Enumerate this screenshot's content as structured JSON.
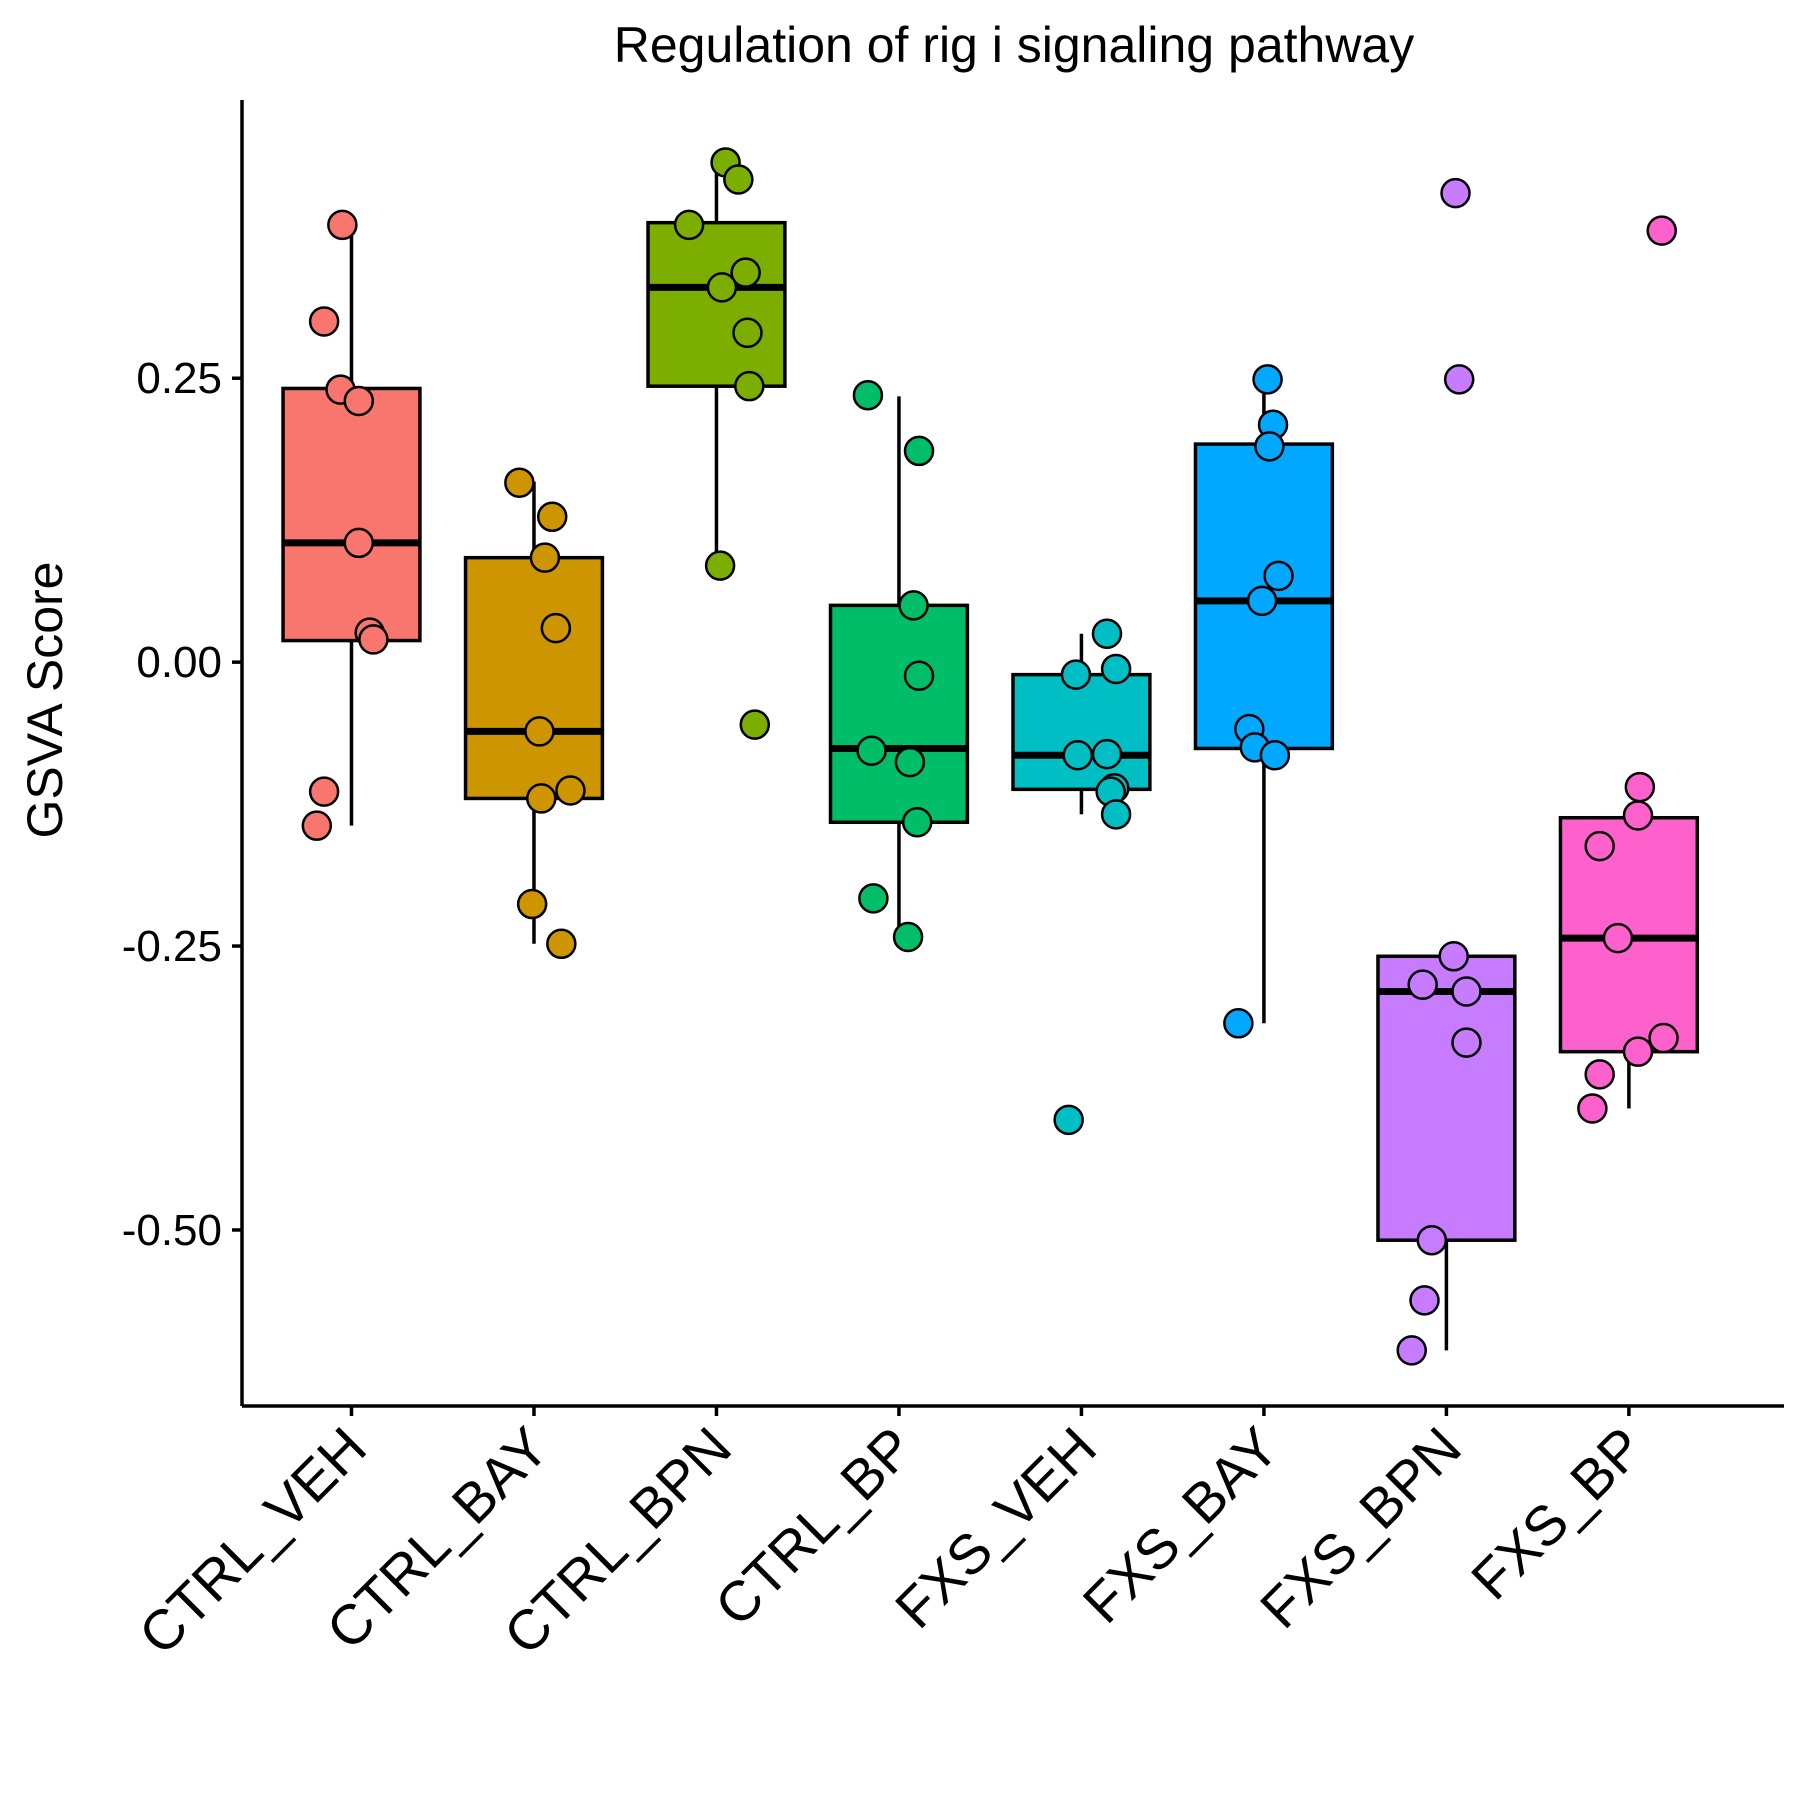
{
  "chart_data": {
    "type": "box",
    "title": "Regulation of rig i signaling pathway",
    "ylabel": "GSVA Score",
    "xlabel": "",
    "ylim": [
      -0.655,
      0.495
    ],
    "yticks": [
      0.25,
      0.0,
      -0.25,
      -0.5
    ],
    "ytick_labels": [
      "0.25",
      "0.00",
      "-0.25",
      "-0.50"
    ],
    "grid": false,
    "legend": "none",
    "categories": [
      "CTRL_VEH",
      "CTRL_BAY",
      "CTRL_BPN",
      "CTRL_BP",
      "FXS_VEH",
      "FXS_BAY",
      "FXS_BPN",
      "FXS_BP"
    ],
    "colors": [
      "#F8766D",
      "#CD9600",
      "#7CAE00",
      "#00BE67",
      "#00BFC4",
      "#00A9FF",
      "#C77CFF",
      "#FF61CC"
    ],
    "boxes": [
      {
        "q1": 0.019,
        "median": 0.105,
        "q3": 0.241,
        "whisker_low": -0.144,
        "whisker_high": 0.383
      },
      {
        "q1": -0.12,
        "median": -0.061,
        "q3": 0.092,
        "whisker_low": -0.248,
        "whisker_high": 0.159
      },
      {
        "q1": 0.243,
        "median": 0.33,
        "q3": 0.387,
        "whisker_low": 0.085,
        "whisker_high": 0.44
      },
      {
        "q1": -0.141,
        "median": -0.076,
        "q3": 0.05,
        "whisker_low": -0.242,
        "whisker_high": 0.234
      },
      {
        "q1": -0.112,
        "median": -0.082,
        "q3": -0.011,
        "whisker_low": -0.134,
        "whisker_high": 0.025
      },
      {
        "q1": -0.076,
        "median": 0.054,
        "q3": 0.192,
        "whisker_low": -0.318,
        "whisker_high": 0.249
      },
      {
        "q1": -0.509,
        "median": -0.29,
        "q3": -0.259,
        "whisker_low": -0.606,
        "whisker_high": -0.259
      },
      {
        "q1": -0.343,
        "median": -0.243,
        "q3": -0.137,
        "whisker_low": -0.393,
        "whisker_high": -0.137
      }
    ],
    "points": [
      [
        [
          -0.05,
          0.385
        ],
        [
          -0.15,
          0.3
        ],
        [
          -0.06,
          0.24
        ],
        [
          0.04,
          0.23
        ],
        [
          0.04,
          0.105
        ],
        [
          0.1,
          0.026
        ],
        [
          0.12,
          0.02
        ],
        [
          -0.15,
          -0.114
        ],
        [
          -0.19,
          -0.144
        ]
      ],
      [
        [
          -0.08,
          0.158
        ],
        [
          0.1,
          0.128
        ],
        [
          0.06,
          0.092
        ],
        [
          0.12,
          0.03
        ],
        [
          0.03,
          -0.061
        ],
        [
          0.04,
          -0.12
        ],
        [
          0.2,
          -0.113
        ],
        [
          -0.01,
          -0.213
        ],
        [
          0.15,
          -0.248
        ]
      ],
      [
        [
          0.05,
          0.44
        ],
        [
          0.12,
          0.425
        ],
        [
          -0.15,
          0.385
        ],
        [
          0.16,
          0.343
        ],
        [
          0.03,
          0.33
        ],
        [
          0.17,
          0.29
        ],
        [
          0.18,
          0.243
        ],
        [
          0.02,
          0.085
        ],
        [
          0.21,
          -0.055
        ]
      ],
      [
        [
          -0.17,
          0.235
        ],
        [
          0.11,
          0.186
        ],
        [
          0.08,
          0.05
        ],
        [
          0.11,
          -0.012
        ],
        [
          -0.15,
          -0.078
        ],
        [
          0.06,
          -0.088
        ],
        [
          0.1,
          -0.141
        ],
        [
          -0.14,
          -0.208
        ],
        [
          0.05,
          -0.242
        ]
      ],
      [
        [
          0.14,
          0.025
        ],
        [
          -0.03,
          -0.011
        ],
        [
          0.19,
          -0.006
        ],
        [
          0.14,
          -0.081
        ],
        [
          -0.02,
          -0.082
        ],
        [
          0.18,
          -0.111
        ],
        [
          0.16,
          -0.114
        ],
        [
          0.19,
          -0.134
        ],
        [
          -0.07,
          -0.403
        ]
      ],
      [
        [
          0.02,
          0.249
        ],
        [
          0.05,
          0.209
        ],
        [
          0.03,
          0.19
        ],
        [
          0.08,
          0.076
        ],
        [
          -0.01,
          0.054
        ],
        [
          -0.08,
          -0.059
        ],
        [
          -0.05,
          -0.075
        ],
        [
          0.06,
          -0.082
        ],
        [
          -0.14,
          -0.318
        ]
      ],
      [
        [
          0.05,
          0.413
        ],
        [
          0.07,
          0.249
        ],
        [
          0.04,
          -0.259
        ],
        [
          -0.13,
          -0.284
        ],
        [
          0.11,
          -0.29
        ],
        [
          0.11,
          -0.335
        ],
        [
          -0.08,
          -0.509
        ],
        [
          -0.12,
          -0.562
        ],
        [
          -0.19,
          -0.606
        ]
      ],
      [
        [
          0.18,
          0.38
        ],
        [
          0.06,
          -0.11
        ],
        [
          0.05,
          -0.135
        ],
        [
          -0.16,
          -0.162
        ],
        [
          -0.06,
          -0.243
        ],
        [
          0.19,
          -0.331
        ],
        [
          0.05,
          -0.343
        ],
        [
          -0.16,
          -0.363
        ],
        [
          -0.2,
          -0.393
        ]
      ]
    ]
  }
}
